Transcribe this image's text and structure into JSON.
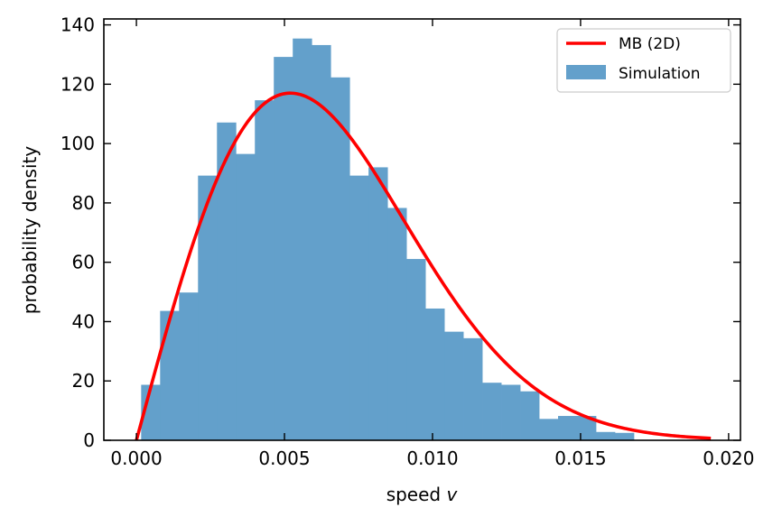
{
  "chart_data": {
    "type": "bar",
    "xlabel_main": "speed ",
    "xlabel_var": "v",
    "ylabel": "probability density",
    "xlim": [
      -0.0011,
      0.0204
    ],
    "ylim": [
      0,
      142
    ],
    "xticks": [
      0.0,
      0.005,
      0.01,
      0.015,
      0.02
    ],
    "xtick_labels": [
      "0.000",
      "0.005",
      "0.010",
      "0.015",
      "0.020"
    ],
    "yticks": [
      0,
      20,
      40,
      60,
      80,
      100,
      120,
      140
    ],
    "ytick_labels": [
      "0",
      "20",
      "40",
      "60",
      "80",
      "100",
      "120",
      "140"
    ],
    "legend": {
      "position": "top-right",
      "line_label": "MB (2D)",
      "bar_label": "Simulation"
    },
    "colors": {
      "curve": "#ff0000",
      "bars": "#63a0cb"
    },
    "histogram": {
      "name": "Simulation",
      "bin_start": 0.00016,
      "bin_width": 0.00064,
      "values": [
        18.7,
        43.6,
        49.8,
        89.2,
        107.1,
        96.5,
        114.6,
        129.2,
        135.4,
        133.2,
        122.3,
        89.2,
        92.0,
        78.3,
        61.1,
        44.4,
        36.6,
        34.4,
        19.4,
        18.7,
        16.5,
        7.2,
        8.2,
        8.2,
        2.8,
        2.5
      ]
    },
    "curve": {
      "name": "MB (2D)",
      "model": "maxwell-boltzmann-2d",
      "x_peak": 0.0052,
      "y_peak": 117,
      "x_max": 0.0194
    }
  }
}
